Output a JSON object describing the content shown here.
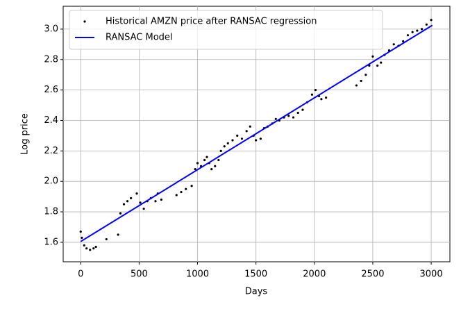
{
  "chart_data": {
    "type": "scatter",
    "xlabel": "Days",
    "ylabel": "Log price",
    "xlim": [
      -150,
      3160
    ],
    "ylim": [
      1.472,
      3.15
    ],
    "xticks": [
      0,
      500,
      1000,
      1500,
      2000,
      2500,
      3000
    ],
    "yticks": [
      1.6,
      1.8,
      {
        "value": 2,
        "label": "2.0"
      },
      2.2,
      2.4,
      2.6,
      2.8,
      {
        "value": 3,
        "label": "3.0"
      }
    ],
    "grid": true,
    "legend": "upper-left",
    "series": [
      {
        "name": "Historical AMZN price after RANSAC regression",
        "type": "scatter",
        "color": "#000000",
        "x": [
          0,
          10,
          30,
          50,
          80,
          110,
          130,
          220,
          320,
          340,
          370,
          400,
          430,
          480,
          510,
          540,
          570,
          600,
          640,
          660,
          690,
          820,
          860,
          900,
          950,
          980,
          1000,
          1030,
          1060,
          1080,
          1100,
          1120,
          1150,
          1180,
          1200,
          1230,
          1260,
          1300,
          1340,
          1380,
          1420,
          1450,
          1480,
          1500,
          1540,
          1570,
          1600,
          1640,
          1670,
          1700,
          1740,
          1780,
          1820,
          1860,
          1900,
          1940,
          1980,
          2010,
          2040,
          2060,
          2100,
          2360,
          2400,
          2440,
          2470,
          2500,
          2540,
          2570,
          2600,
          2640,
          2680,
          2720,
          2760,
          2800,
          2840,
          2880,
          2920,
          2960,
          3000
        ],
        "values": [
          1.67,
          1.63,
          1.58,
          1.56,
          1.55,
          1.56,
          1.57,
          1.62,
          1.65,
          1.79,
          1.85,
          1.87,
          1.89,
          1.92,
          1.86,
          1.82,
          1.87,
          1.89,
          1.87,
          1.92,
          1.88,
          1.91,
          1.93,
          1.95,
          1.97,
          2.08,
          2.12,
          2.1,
          2.14,
          2.16,
          2.12,
          2.08,
          2.1,
          2.14,
          2.2,
          2.23,
          2.25,
          2.27,
          2.3,
          2.28,
          2.33,
          2.36,
          2.3,
          2.27,
          2.28,
          2.35,
          2.36,
          2.38,
          2.41,
          2.4,
          2.42,
          2.43,
          2.42,
          2.45,
          2.47,
          2.52,
          2.57,
          2.6,
          2.56,
          2.54,
          2.55,
          2.63,
          2.66,
          2.7,
          2.76,
          2.82,
          2.76,
          2.78,
          2.83,
          2.86,
          2.9,
          2.89,
          2.92,
          2.96,
          2.98,
          2.99,
          3.0,
          3.03,
          3.06
        ]
      },
      {
        "name": "RANSAC Model",
        "type": "line",
        "color": "#0000ff",
        "x": [
          0,
          3010
        ],
        "values": [
          1.605,
          3.025
        ]
      }
    ]
  }
}
